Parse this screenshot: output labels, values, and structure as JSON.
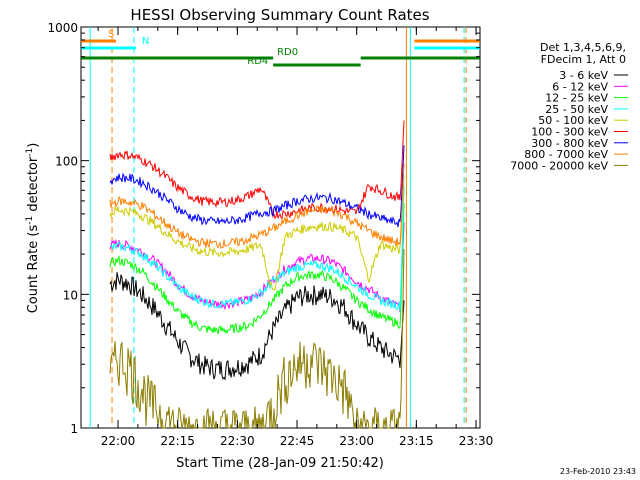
{
  "chart_data": {
    "type": "line",
    "title": "HESSI Observing Summary Count Rates",
    "xlabel": "Start Time (28-Jan-09 21:50:42)",
    "ylabel": "Count Rate (s",
    "ylabel_sup1": "-1",
    "ylabel_mid": " detector",
    "ylabel_sup2": "-1",
    "ylabel_end": ")",
    "y_scale": "log",
    "ylim": [
      1,
      1000
    ],
    "xlim": [
      "21:50:42",
      "23:31:00"
    ],
    "x_ticks": [
      "22:00",
      "22:15",
      "22:30",
      "22:45",
      "23:00",
      "23:15",
      "23:30"
    ],
    "y_ticks": [
      "1",
      "10",
      "100",
      "1000"
    ],
    "legend_header": [
      "Det 1,3,4,5,6,9,",
      "FDecim 1, Att 0"
    ],
    "legend_position": "right",
    "series": [
      {
        "name": "3 - 6 keV",
        "color": "#000000",
        "x": [
          "21:58",
          "22:00",
          "22:03",
          "22:06",
          "22:09",
          "22:12",
          "22:15",
          "22:18",
          "22:21",
          "22:24",
          "22:27",
          "22:30",
          "22:33",
          "22:36",
          "22:39",
          "22:42",
          "22:45",
          "22:48",
          "22:51",
          "22:54",
          "22:57",
          "23:00",
          "23:03",
          "23:06",
          "23:09",
          "23:11",
          "23:12"
        ],
        "values": [
          12,
          13,
          12,
          10,
          8,
          6,
          4.5,
          3.5,
          3.0,
          2.8,
          2.8,
          2.9,
          3.1,
          3.6,
          5.5,
          7.5,
          9.5,
          10,
          10,
          9.5,
          8,
          6,
          4.8,
          4,
          3.5,
          3.3,
          10
        ]
      },
      {
        "name": "6 - 12 keV",
        "color": "#ff00ff",
        "x": [
          "21:58",
          "22:00",
          "22:03",
          "22:06",
          "22:09",
          "22:12",
          "22:15",
          "22:18",
          "22:21",
          "22:24",
          "22:27",
          "22:30",
          "22:33",
          "22:36",
          "22:39",
          "22:42",
          "22:45",
          "22:48",
          "22:51",
          "22:54",
          "22:57",
          "23:00",
          "23:03",
          "23:06",
          "23:09",
          "23:11",
          "23:12"
        ],
        "values": [
          23,
          24,
          23,
          21,
          18,
          15,
          12,
          10,
          9,
          8.5,
          8.5,
          8.7,
          9.2,
          10.5,
          13,
          15.5,
          17.5,
          18.5,
          18.5,
          17.5,
          15,
          12.5,
          11,
          9.5,
          8.5,
          8,
          40
        ]
      },
      {
        "name": "12 - 25 keV",
        "color": "#00ff00",
        "x": [
          "21:58",
          "22:00",
          "22:03",
          "22:06",
          "22:09",
          "22:12",
          "22:15",
          "22:18",
          "22:21",
          "22:24",
          "22:27",
          "22:30",
          "22:33",
          "22:36",
          "22:39",
          "22:42",
          "22:45",
          "22:48",
          "22:51",
          "22:54",
          "22:57",
          "23:00",
          "23:03",
          "23:06",
          "23:09",
          "23:11",
          "23:12"
        ],
        "values": [
          17,
          18,
          17,
          15,
          12,
          9.5,
          7.5,
          6.3,
          5.6,
          5.4,
          5.4,
          5.6,
          5.9,
          7,
          9,
          11.5,
          13.5,
          14,
          14,
          13,
          11,
          9,
          7.8,
          6.8,
          6.3,
          6,
          60
        ]
      },
      {
        "name": "25 - 50 keV",
        "color": "#00ffff",
        "x": [
          "21:58",
          "22:00",
          "22:03",
          "22:06",
          "22:09",
          "22:12",
          "22:15",
          "22:18",
          "22:21",
          "22:24",
          "22:27",
          "22:30",
          "22:33",
          "22:36",
          "22:39",
          "22:42",
          "22:45",
          "22:48",
          "22:51",
          "22:54",
          "22:57",
          "23:00",
          "23:03",
          "23:06",
          "23:09",
          "23:11",
          "23:12"
        ],
        "values": [
          22,
          23,
          22,
          20,
          17,
          14,
          11.5,
          9.8,
          9,
          8.5,
          8.5,
          8.7,
          9.2,
          10.3,
          12.5,
          14.5,
          16,
          16.5,
          16.5,
          15.5,
          13.5,
          11.5,
          10,
          9,
          8.5,
          8.2,
          80
        ]
      },
      {
        "name": "50 - 100 keV",
        "color": "#cccc00",
        "x": [
          "21:58",
          "22:00",
          "22:03",
          "22:06",
          "22:09",
          "22:12",
          "22:15",
          "22:18",
          "22:21",
          "22:24",
          "22:27",
          "22:30",
          "22:33",
          "22:36",
          "22:39",
          "22:42",
          "22:45",
          "22:48",
          "22:51",
          "22:54",
          "22:57",
          "23:00",
          "23:03",
          "23:06",
          "23:09",
          "23:11",
          "23:12"
        ],
        "values": [
          40,
          43,
          42,
          39,
          34,
          29,
          25,
          22.5,
          21,
          20.5,
          20.5,
          21,
          22,
          23.5,
          10,
          27,
          30,
          32,
          32.5,
          32,
          30,
          27,
          13,
          24,
          22,
          21.5,
          90
        ]
      },
      {
        "name": "100 - 300 keV",
        "color": "#ff0000",
        "x": [
          "21:58",
          "22:00",
          "22:03",
          "22:06",
          "22:09",
          "22:12",
          "22:15",
          "22:18",
          "22:21",
          "22:24",
          "22:27",
          "22:30",
          "22:33",
          "22:36",
          "22:39",
          "22:42",
          "22:45",
          "22:48",
          "22:51",
          "22:54",
          "22:57",
          "23:00",
          "23:03",
          "23:06",
          "23:09",
          "23:11",
          "23:12"
        ],
        "values": [
          105,
          112,
          110,
          102,
          90,
          76,
          63,
          55,
          50,
          49,
          49,
          51,
          55,
          62,
          40,
          40,
          42,
          44,
          45,
          44,
          42,
          41,
          65,
          60,
          55,
          52,
          230
        ]
      },
      {
        "name": "300 - 800 keV",
        "color": "#0000ff",
        "x": [
          "21:58",
          "22:00",
          "22:03",
          "22:06",
          "22:09",
          "22:12",
          "22:15",
          "22:18",
          "22:21",
          "22:24",
          "22:27",
          "22:30",
          "22:33",
          "22:36",
          "22:39",
          "22:42",
          "22:45",
          "22:48",
          "22:51",
          "22:54",
          "22:57",
          "23:00",
          "23:03",
          "23:06",
          "23:09",
          "23:11",
          "23:12"
        ],
        "values": [
          71,
          75,
          74,
          69,
          61,
          52,
          44,
          38.5,
          36,
          35,
          35,
          36,
          38,
          41,
          42,
          46,
          50,
          52,
          53,
          52,
          48,
          44,
          40,
          37,
          35,
          34,
          150
        ]
      },
      {
        "name": "800 - 7000 keV",
        "color": "#ff8000",
        "x": [
          "21:58",
          "22:00",
          "22:03",
          "22:06",
          "22:09",
          "22:12",
          "22:15",
          "22:18",
          "22:21",
          "22:24",
          "22:27",
          "22:30",
          "22:33",
          "22:36",
          "22:39",
          "22:42",
          "22:45",
          "22:48",
          "22:51",
          "22:54",
          "22:57",
          "23:00",
          "23:03",
          "23:06",
          "23:09",
          "23:11",
          "23:12"
        ],
        "values": [
          47,
          50,
          49,
          46,
          40,
          34,
          29,
          26,
          24.5,
          24,
          24,
          24.5,
          26,
          28,
          31,
          35,
          39,
          42,
          43,
          42,
          39,
          34,
          30,
          27,
          25,
          24.5,
          110
        ]
      },
      {
        "name": "7000 - 20000 keV",
        "color": "#8b7d00",
        "x": [
          "21:58",
          "22:00",
          "22:03",
          "22:06",
          "22:09",
          "22:12",
          "22:15",
          "22:18",
          "22:21",
          "22:24",
          "22:27",
          "22:30",
          "22:33",
          "22:36",
          "22:39",
          "22:42",
          "22:45",
          "22:48",
          "22:51",
          "22:54",
          "22:57",
          "23:00",
          "23:03",
          "23:06",
          "23:09",
          "23:11",
          "23:12"
        ],
        "values": [
          2.5,
          3.5,
          3,
          2,
          1.5,
          1.2,
          1,
          1,
          1,
          1,
          1,
          1,
          1,
          1,
          1.5,
          2.5,
          3,
          3.5,
          3,
          2.5,
          2,
          1,
          1,
          1,
          1,
          1,
          30
        ]
      }
    ],
    "status_bars": [
      {
        "label": "S",
        "color": "#ff8000",
        "segments": [
          [
            "21:50:42",
            "21:59:30"
          ],
          [
            "23:14:30",
            "23:31:00"
          ]
        ]
      },
      {
        "label": "N",
        "color": "#00ffff",
        "segments": [
          [
            "21:50:42",
            "22:04:30"
          ],
          [
            "23:14:30",
            "23:31:00"
          ]
        ]
      },
      {
        "label": "RD0",
        "color": "#008000",
        "segments": [
          [
            "21:50:42",
            "22:39:00"
          ],
          [
            "23:01:00",
            "23:31:00"
          ]
        ]
      },
      {
        "label": "RD4",
        "color": "#008000",
        "segments": [
          [
            "22:39:00",
            "23:01:00"
          ]
        ]
      }
    ],
    "vertical_markers": [
      {
        "x": "21:53:00",
        "color": "#00ffff",
        "style": "solid"
      },
      {
        "x": "21:58:30",
        "color": "#ff8000",
        "style": "dashed"
      },
      {
        "x": "22:04:00",
        "color": "#00ffff",
        "style": "dashed"
      },
      {
        "x": "23:12:30",
        "color": "#ff8000",
        "style": "solid"
      },
      {
        "x": "23:13:30",
        "color": "#00ffff",
        "style": "solid"
      },
      {
        "x": "23:27:00",
        "color": "#00ffff",
        "style": "dashed"
      },
      {
        "x": "23:27:30",
        "color": "#ff8000",
        "style": "dashed"
      }
    ]
  },
  "footer_stamp": "23-Feb-2010 23:43"
}
